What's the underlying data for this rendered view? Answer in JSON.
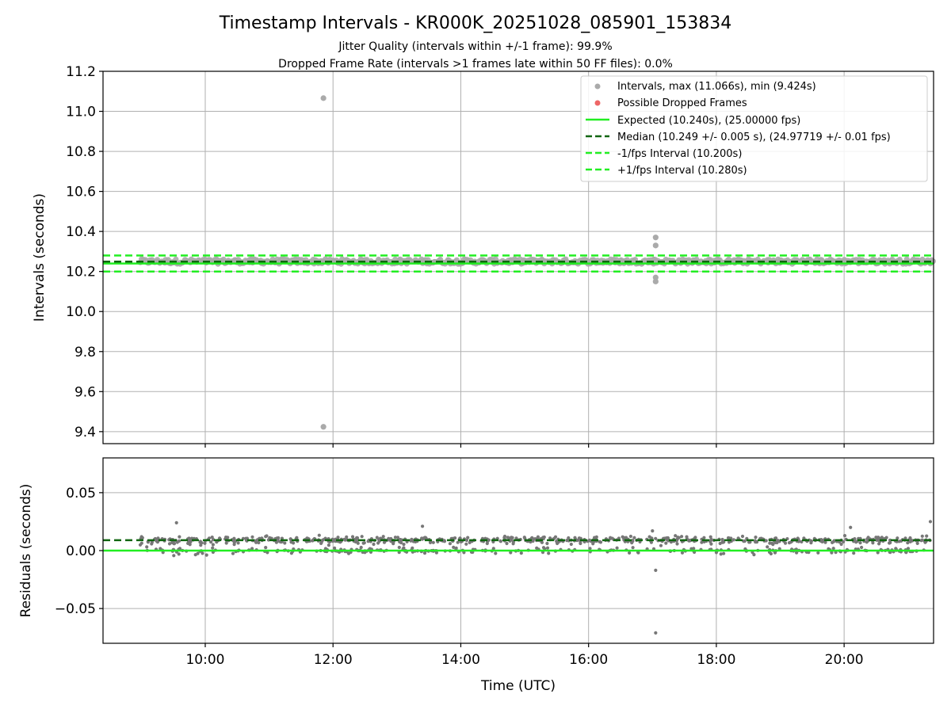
{
  "chart_data": [
    {
      "type": "scatter",
      "title": "Timestamp Intervals - KR000K_20251028_085901_153834",
      "subtitle_lines": [
        "Jitter Quality (intervals within +/-1 frame): 99.9%",
        "Dropped Frame Rate (intervals >1 frames late within 50 FF files): 0.0%"
      ],
      "xlabel": "",
      "ylabel": "Intervals (seconds)",
      "xlim_hours": [
        8.4,
        21.4
      ],
      "ylim": [
        9.34,
        11.2
      ],
      "yticks": [
        {
          "v": 9.4,
          "label": "9.4"
        },
        {
          "v": 9.6,
          "label": "9.6"
        },
        {
          "v": 9.8,
          "label": "9.8"
        },
        {
          "v": 10.0,
          "label": "10.0"
        },
        {
          "v": 10.2,
          "label": "10.2"
        },
        {
          "v": 10.4,
          "label": "10.4"
        },
        {
          "v": 10.6,
          "label": "10.6"
        },
        {
          "v": 10.8,
          "label": "10.8"
        },
        {
          "v": 11.0,
          "label": "11.0"
        },
        {
          "v": 11.2,
          "label": "11.2"
        }
      ],
      "grid": true,
      "data_start_hour": 8.98,
      "data_end_hour": 21.4,
      "typical_interval_range": [
        10.238,
        10.262
      ],
      "reference_lines": [
        {
          "name": "Expected (10.240s), (25.00000 fps)",
          "y": 10.24,
          "color": "#22ee22",
          "style": "solid"
        },
        {
          "name": "Median (10.249 +/- 0.005 s), (24.97719 +/- 0.01 fps)",
          "y": 10.249,
          "color": "#116611",
          "style": "dashed"
        },
        {
          "name": "-1/fps Interval (10.200s)",
          "y": 10.2,
          "color": "#22ee22",
          "style": "dashed"
        },
        {
          "name": "+1/fps Interval (10.280s)",
          "y": 10.28,
          "color": "#22ee22",
          "style": "dashed"
        }
      ],
      "series": [
        {
          "name": "Intervals, max (11.066s), min (9.424s)",
          "color": "#aaaaaa",
          "outliers": [
            [
              11.85,
              11.066
            ],
            [
              11.85,
              9.424
            ],
            [
              17.05,
              10.37
            ],
            [
              17.05,
              10.33
            ],
            [
              17.05,
              10.17
            ],
            [
              17.05,
              10.15
            ],
            [
              17.02,
              10.26
            ]
          ]
        },
        {
          "name": "Possible Dropped Frames",
          "color": "#ee6666",
          "outliers": []
        }
      ],
      "legend_loc": "upper right"
    },
    {
      "type": "scatter",
      "title": "",
      "xlabel": "Time (UTC)",
      "ylabel": "Residuals (seconds)",
      "xlim_hours": [
        8.4,
        21.4
      ],
      "ylim": [
        -0.08,
        0.08
      ],
      "yticks": [
        {
          "v": -0.05,
          "label": "−0.05"
        },
        {
          "v": 0.0,
          "label": "0.00"
        },
        {
          "v": 0.05,
          "label": "0.05"
        }
      ],
      "xticks": [
        {
          "v": 10,
          "label": "10:00"
        },
        {
          "v": 12,
          "label": "12:00"
        },
        {
          "v": 14,
          "label": "14:00"
        },
        {
          "v": 16,
          "label": "16:00"
        },
        {
          "v": 18,
          "label": "18:00"
        },
        {
          "v": 20,
          "label": "20:00"
        }
      ],
      "grid": true,
      "reference_lines": [
        {
          "name": "Expected residual",
          "y": 0.0,
          "color": "#22ee22",
          "style": "solid"
        },
        {
          "name": "Median residual",
          "y": 0.009,
          "color": "#116611",
          "style": "dashed"
        }
      ],
      "series": [
        {
          "name": "Residuals",
          "color": "#777777",
          "typical_range": [
            -0.008,
            0.02
          ],
          "outliers": [
            [
              9.55,
              0.024
            ],
            [
              13.4,
              0.021
            ],
            [
              17.05,
              -0.017
            ],
            [
              17.05,
              -0.071
            ],
            [
              21.35,
              0.025
            ],
            [
              20.1,
              0.02
            ],
            [
              17.0,
              0.017
            ]
          ]
        }
      ]
    }
  ]
}
